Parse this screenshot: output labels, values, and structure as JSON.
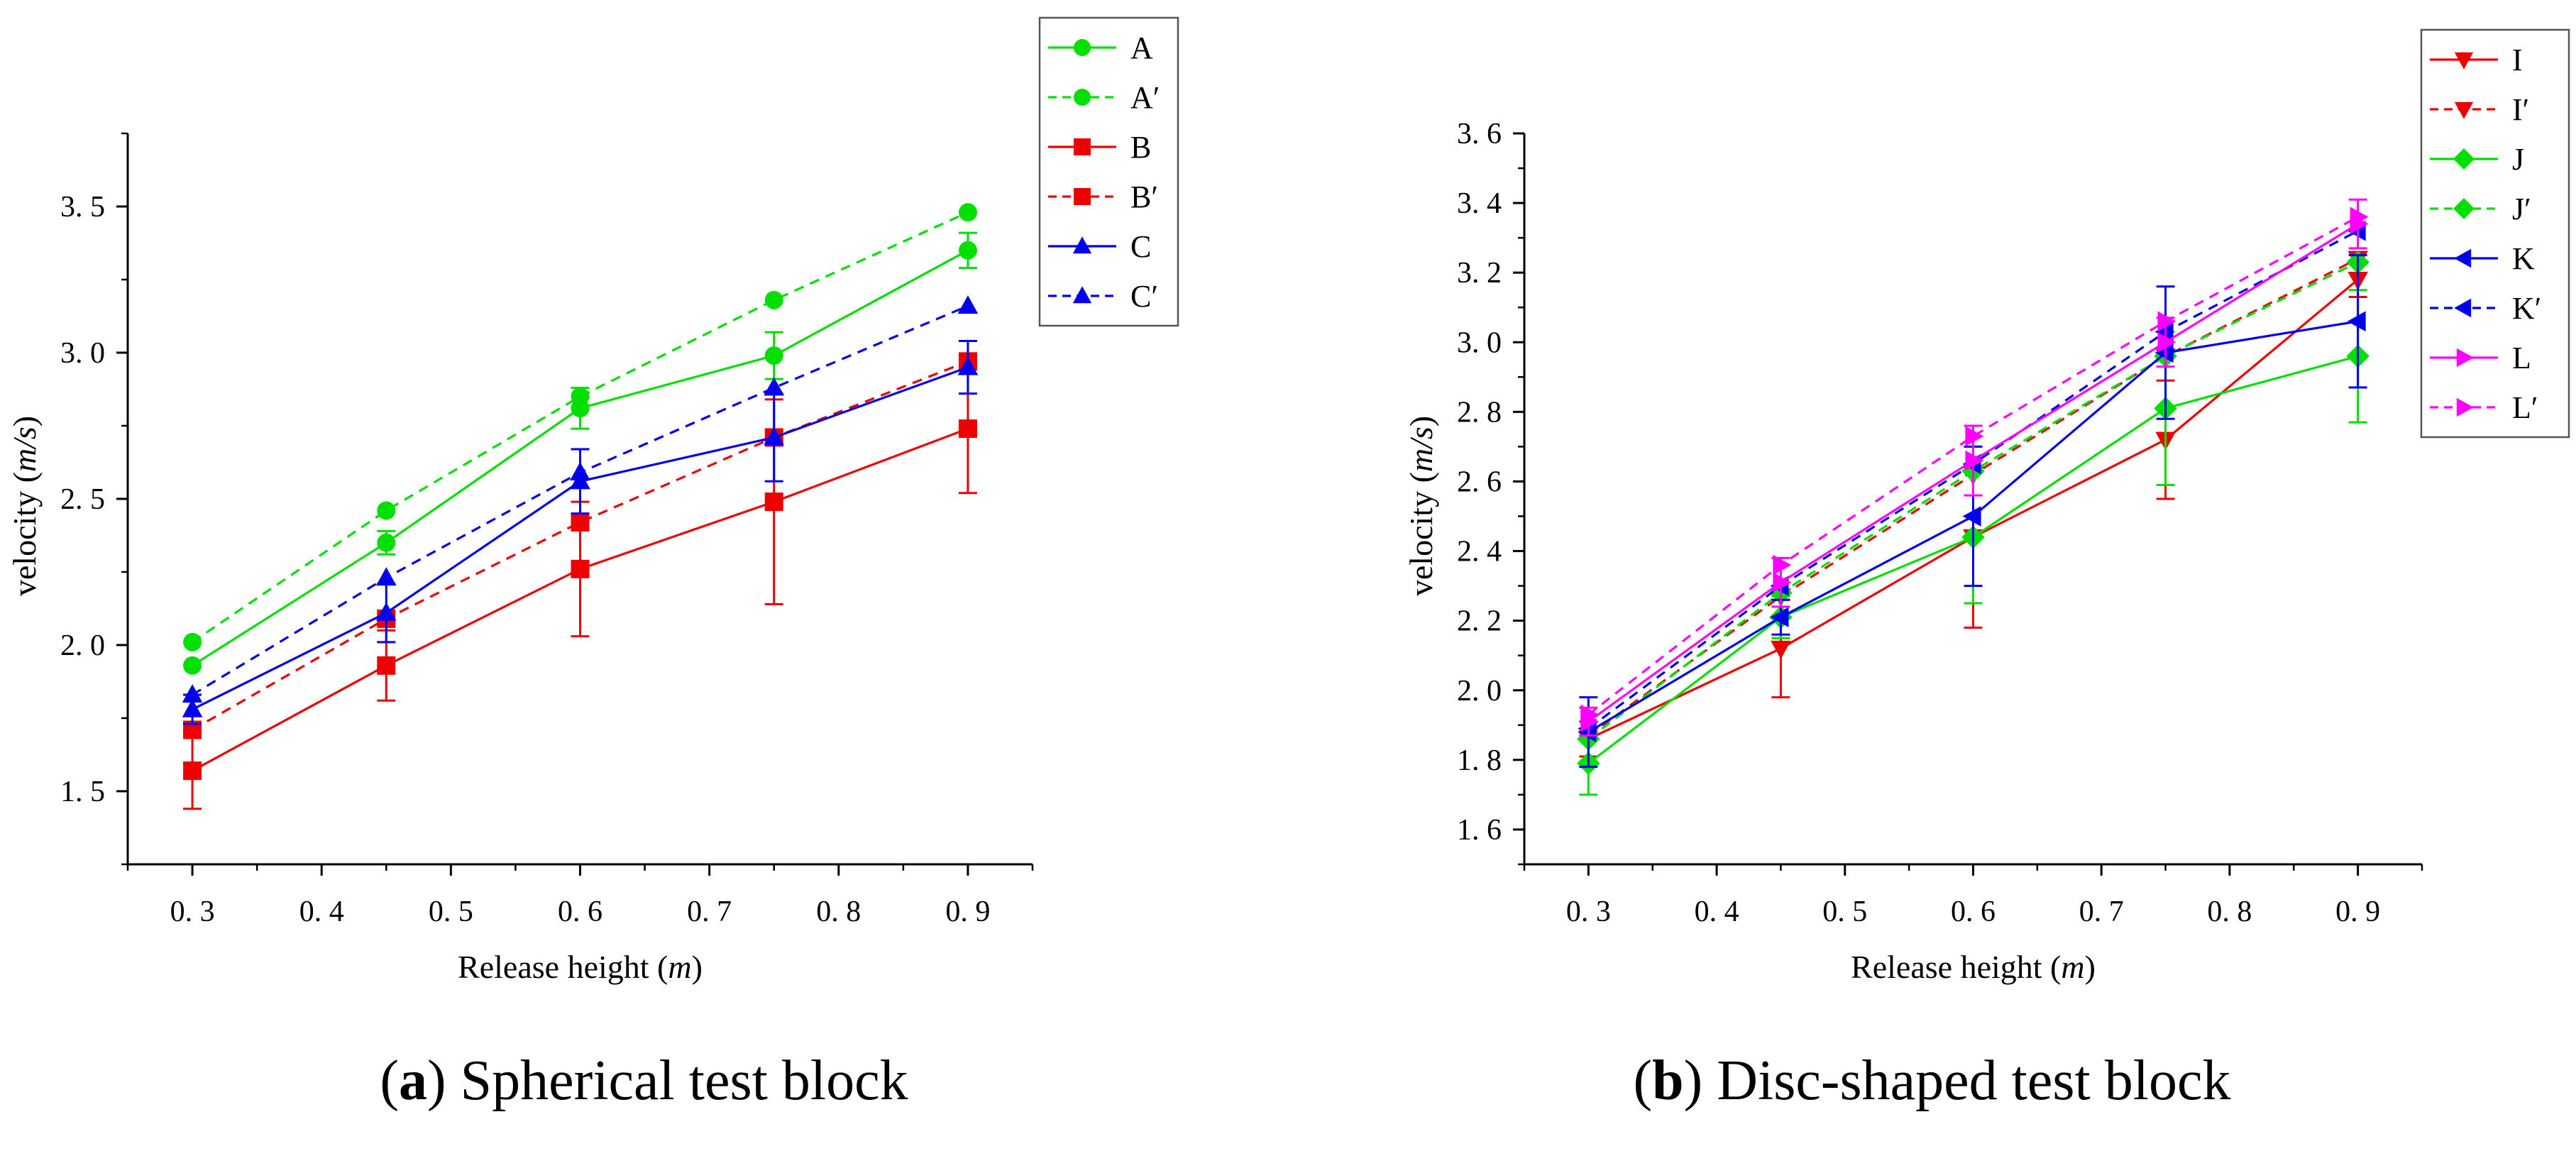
{
  "chart_data": [
    {
      "type": "line",
      "panel": "a",
      "caption_letter": "a",
      "caption_text": "Spherical test block",
      "xlabel": "Release height",
      "xunit": "m",
      "ylabel": "velocity",
      "yunit": "m/s",
      "xlim": [
        0.25,
        0.95
      ],
      "ylim": [
        1.25,
        3.75
      ],
      "xticks": [
        0.3,
        0.4,
        0.5,
        0.6,
        0.7,
        0.8,
        0.9
      ],
      "xtick_labels": [
        "0. 3",
        "0. 4",
        "0. 5",
        "0. 6",
        "0. 7",
        "0. 8",
        "0. 9"
      ],
      "yticks": [
        1.5,
        2.0,
        2.5,
        3.0,
        3.5
      ],
      "ytick_labels": [
        "1. 5",
        "2. 0",
        "2. 5",
        "3. 0",
        "3. 5"
      ],
      "legend_position": "top-right-outside",
      "x": [
        0.3,
        0.45,
        0.6,
        0.75,
        0.9
      ],
      "series": [
        {
          "name": "A",
          "color": "#00e000",
          "dash": "solid",
          "marker": "circle",
          "values": [
            1.93,
            2.35,
            2.81,
            2.99,
            3.35
          ],
          "err": [
            0.0,
            0.04,
            0.07,
            0.08,
            0.06
          ]
        },
        {
          "name": "A′",
          "color": "#00e000",
          "dash": "dashed",
          "marker": "circle",
          "values": [
            2.01,
            2.46,
            2.85,
            3.18,
            3.48
          ],
          "err": [
            0,
            0,
            0,
            0,
            0
          ]
        },
        {
          "name": "B",
          "color": "#ee0000",
          "dash": "solid",
          "marker": "square",
          "values": [
            1.57,
            1.93,
            2.26,
            2.49,
            2.74
          ],
          "err": [
            0.13,
            0.12,
            0.23,
            0.35,
            0.22
          ]
        },
        {
          "name": "B′",
          "color": "#ee0000",
          "dash": "dashed",
          "marker": "square",
          "values": [
            1.71,
            2.09,
            2.42,
            2.71,
            2.97
          ],
          "err": [
            0,
            0,
            0,
            0,
            0
          ]
        },
        {
          "name": "C",
          "color": "#0000ee",
          "dash": "solid",
          "marker": "triangle-up",
          "values": [
            1.78,
            2.11,
            2.56,
            2.71,
            2.95
          ],
          "err": [
            0.05,
            0.1,
            0.11,
            0.15,
            0.09
          ]
        },
        {
          "name": "C′",
          "color": "#0000ee",
          "dash": "dashed",
          "marker": "triangle-up",
          "values": [
            1.83,
            2.23,
            2.59,
            2.88,
            3.16
          ],
          "err": [
            0,
            0,
            0,
            0,
            0
          ]
        }
      ]
    },
    {
      "type": "line",
      "panel": "b",
      "caption_letter": "b",
      "caption_text": "Disc-shaped test block",
      "xlabel": "Release height",
      "xunit": "m",
      "ylabel": "velocity",
      "yunit": "m/s",
      "xlim": [
        0.25,
        0.95
      ],
      "ylim": [
        1.5,
        3.6
      ],
      "xticks": [
        0.3,
        0.4,
        0.5,
        0.6,
        0.7,
        0.8,
        0.9
      ],
      "xtick_labels": [
        "0. 3",
        "0. 4",
        "0. 5",
        "0. 6",
        "0. 7",
        "0. 8",
        "0. 9"
      ],
      "yticks": [
        1.6,
        1.8,
        2.0,
        2.2,
        2.4,
        2.6,
        2.8,
        3.0,
        3.2,
        3.4,
        3.6
      ],
      "ytick_labels": [
        "1. 6",
        "1. 8",
        "2. 0",
        "2. 2",
        "2. 4",
        "2. 6",
        "2. 8",
        "3. 0",
        "3. 2",
        "3. 4",
        "3. 6"
      ],
      "legend_position": "top-right-outside",
      "x": [
        0.3,
        0.45,
        0.6,
        0.75,
        0.9
      ],
      "series": [
        {
          "name": "I",
          "color": "#ee0000",
          "dash": "solid",
          "marker": "triangle-down",
          "values": [
            1.86,
            2.12,
            2.44,
            2.72,
            3.18
          ],
          "err": [
            0.05,
            0.14,
            0.26,
            0.17,
            0.05
          ]
        },
        {
          "name": "I′",
          "color": "#ee0000",
          "dash": "dashed",
          "marker": "triangle-down",
          "values": [
            1.87,
            2.27,
            2.62,
            2.96,
            3.24
          ],
          "err": [
            0,
            0,
            0,
            0,
            0
          ]
        },
        {
          "name": "J",
          "color": "#00e000",
          "dash": "solid",
          "marker": "diamond",
          "values": [
            1.79,
            2.21,
            2.44,
            2.81,
            2.96
          ],
          "err": [
            0.09,
            0.06,
            0.19,
            0.22,
            0.19
          ]
        },
        {
          "name": "J′",
          "color": "#00e000",
          "dash": "dashed",
          "marker": "diamond",
          "values": [
            1.86,
            2.28,
            2.63,
            2.96,
            3.23
          ],
          "err": [
            0,
            0,
            0,
            0,
            0
          ]
        },
        {
          "name": "K",
          "color": "#0000ee",
          "dash": "solid",
          "marker": "triangle-left",
          "values": [
            1.88,
            2.21,
            2.5,
            2.97,
            3.06
          ],
          "err": [
            0.1,
            0.05,
            0.2,
            0.19,
            0.19
          ]
        },
        {
          "name": "K′",
          "color": "#0000ee",
          "dash": "dashed",
          "marker": "triangle-left",
          "values": [
            1.89,
            2.3,
            2.65,
            3.03,
            3.32
          ],
          "err": [
            0,
            0,
            0,
            0,
            0
          ]
        },
        {
          "name": "L",
          "color": "#ff00ff",
          "dash": "solid",
          "marker": "triangle-right",
          "values": [
            1.91,
            2.31,
            2.66,
            3.0,
            3.34
          ],
          "err": [
            0.04,
            0.07,
            0.1,
            0.07,
            0.07
          ]
        },
        {
          "name": "L′",
          "color": "#ff00ff",
          "dash": "dashed",
          "marker": "triangle-right",
          "values": [
            1.93,
            2.36,
            2.73,
            3.06,
            3.36
          ],
          "err": [
            0,
            0,
            0,
            0,
            0
          ]
        }
      ]
    }
  ]
}
